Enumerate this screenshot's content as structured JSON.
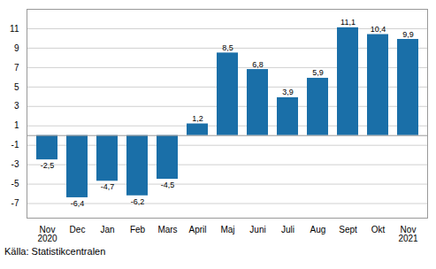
{
  "chart_data": {
    "type": "bar",
    "categories": [
      "Nov\n2020",
      "Dec",
      "Jan",
      "Feb",
      "Mars",
      "April",
      "Maj",
      "Juni",
      "Juli",
      "Aug",
      "Sept",
      "Okt",
      "Nov\n2021"
    ],
    "values": [
      -2.5,
      -6.4,
      -4.7,
      -6.2,
      -4.5,
      1.2,
      8.5,
      6.8,
      3.9,
      5.9,
      11.1,
      10.4,
      9.9
    ],
    "value_labels": [
      "-2,5",
      "-6,4",
      "-4,7",
      "-6,2",
      "-4,5",
      "1,2",
      "8,5",
      "6,8",
      "3,9",
      "5,9",
      "11,1",
      "10,4",
      "9,9"
    ],
    "data_labels": true,
    "color": "#1a6fa8",
    "ylim": [
      -8.5,
      13.0
    ],
    "yticks": [
      -7,
      -5,
      -3,
      -1,
      1,
      3,
      5,
      7,
      9,
      11
    ],
    "grid": true,
    "annotations": [
      "Källa: Statistikcentralen"
    ]
  }
}
